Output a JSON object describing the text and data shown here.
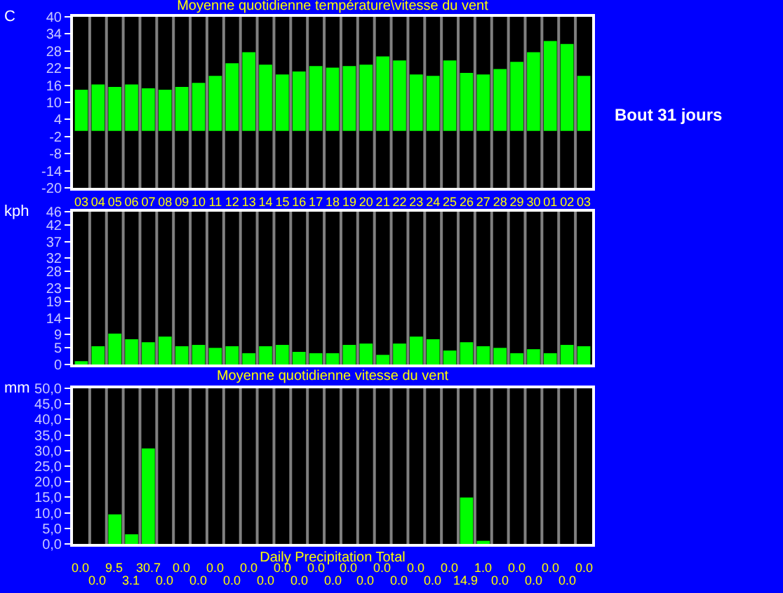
{
  "chart_data": [
    {
      "type": "bar",
      "title": "Moyenne quotidienne température\\vitesse du vent",
      "ylabel": "C",
      "annotations": [
        "Bout 31 jours"
      ],
      "categories": [
        "03",
        "04",
        "05",
        "06",
        "07",
        "08",
        "09",
        "10",
        "11",
        "12",
        "13",
        "14",
        "15",
        "16",
        "17",
        "18",
        "19",
        "20",
        "21",
        "22",
        "23",
        "24",
        "25",
        "26",
        "27",
        "28",
        "29",
        "30",
        "01",
        "02",
        "03"
      ],
      "values": [
        14.4,
        16.3,
        15.4,
        16.3,
        14.9,
        14.4,
        15.4,
        16.8,
        19.3,
        23.7,
        27.6,
        23.2,
        19.8,
        20.8,
        22.7,
        22.2,
        22.7,
        23.2,
        26.1,
        24.7,
        19.8,
        19.3,
        24.7,
        20.3,
        19.8,
        21.7,
        24.2,
        27.6,
        31.5,
        30.5,
        19.3
      ],
      "color": "#00ff00",
      "ylim": [
        -20,
        40
      ],
      "yticks": [
        -20,
        -14,
        -8,
        -2,
        4,
        10,
        16,
        22,
        28,
        34,
        40
      ],
      "grid": "x"
    },
    {
      "type": "bar",
      "title": "Moyenne quotidienne vitesse du vent",
      "ylabel": "kph",
      "categories": [
        null,
        null,
        null,
        null,
        null,
        null,
        null,
        null,
        null,
        null,
        null,
        null,
        null,
        null,
        null,
        null,
        null,
        null,
        null,
        null,
        null,
        null,
        null,
        null,
        null,
        null,
        null,
        null,
        null,
        null,
        null
      ],
      "values": [
        1.0,
        5.5,
        9.3,
        7.6,
        6.7,
        8.4,
        5.5,
        5.9,
        5.0,
        5.5,
        3.4,
        5.5,
        5.9,
        3.8,
        3.4,
        3.4,
        5.9,
        6.3,
        2.9,
        6.3,
        8.4,
        7.6,
        4.2,
        6.7,
        5.5,
        5.0,
        3.4,
        4.6,
        3.4,
        5.9,
        5.5
      ],
      "color": "#00ff00",
      "ylim": [
        0,
        46
      ],
      "yticks": [
        0,
        5,
        9,
        14,
        19,
        23,
        28,
        32,
        37,
        42,
        46
      ],
      "grid": "x",
      "tick_labels": "y"
    },
    {
      "type": "bar",
      "title": "Daily Precipitation Total",
      "ylabel": "mm",
      "categories": [
        null,
        null,
        null,
        null,
        null,
        null,
        null,
        null,
        null,
        null,
        null,
        null,
        null,
        null,
        null,
        null,
        null,
        null,
        null,
        null,
        null,
        null,
        null,
        null,
        null,
        null,
        null,
        null,
        null,
        null,
        null
      ],
      "values": [
        0.0,
        0.0,
        9.5,
        3.1,
        30.7,
        0.0,
        0.0,
        0.0,
        0.0,
        0.0,
        0.0,
        0.0,
        0.0,
        0.0,
        0.0,
        0.0,
        0.0,
        0.0,
        0.0,
        0.0,
        0.0,
        0.0,
        0.0,
        14.9,
        1.0,
        0.0,
        0.0,
        0.0,
        0.0,
        0.0,
        0.0
      ],
      "value_labels": [
        "0.0",
        "0.0",
        "9.5",
        "3.1",
        "30.7",
        "0.0",
        "0.0",
        "0.0",
        "0.0",
        "0.0",
        "0.0",
        "0.0",
        "0.0",
        "0.0",
        "0.0",
        "0.0",
        "0.0",
        "0.0",
        "0.0",
        "0.0",
        "0.0",
        "0.0",
        "0.0",
        "14.9",
        "1.0",
        "0.0",
        "0.0",
        "0.0",
        "0.0",
        "0.0",
        "0.0"
      ],
      "color": "#00ff00",
      "ylim": [
        0,
        50
      ],
      "yticks": [
        {
          "value": 0,
          "label": "0,0"
        },
        {
          "value": 5,
          "label": "5,0"
        },
        {
          "value": 10,
          "label": "10,0"
        },
        {
          "value": 15,
          "label": "15,0"
        },
        {
          "value": 20,
          "label": "20,0"
        },
        {
          "value": 25,
          "label": "25,0"
        },
        {
          "value": 30,
          "label": "30,0"
        },
        {
          "value": 35,
          "label": "35,0"
        },
        {
          "value": 40,
          "label": "40,0"
        },
        {
          "value": 45,
          "label": "45,0"
        },
        {
          "value": 50,
          "label": "50,0"
        }
      ],
      "grid": "x",
      "tick_labels": "y"
    }
  ]
}
